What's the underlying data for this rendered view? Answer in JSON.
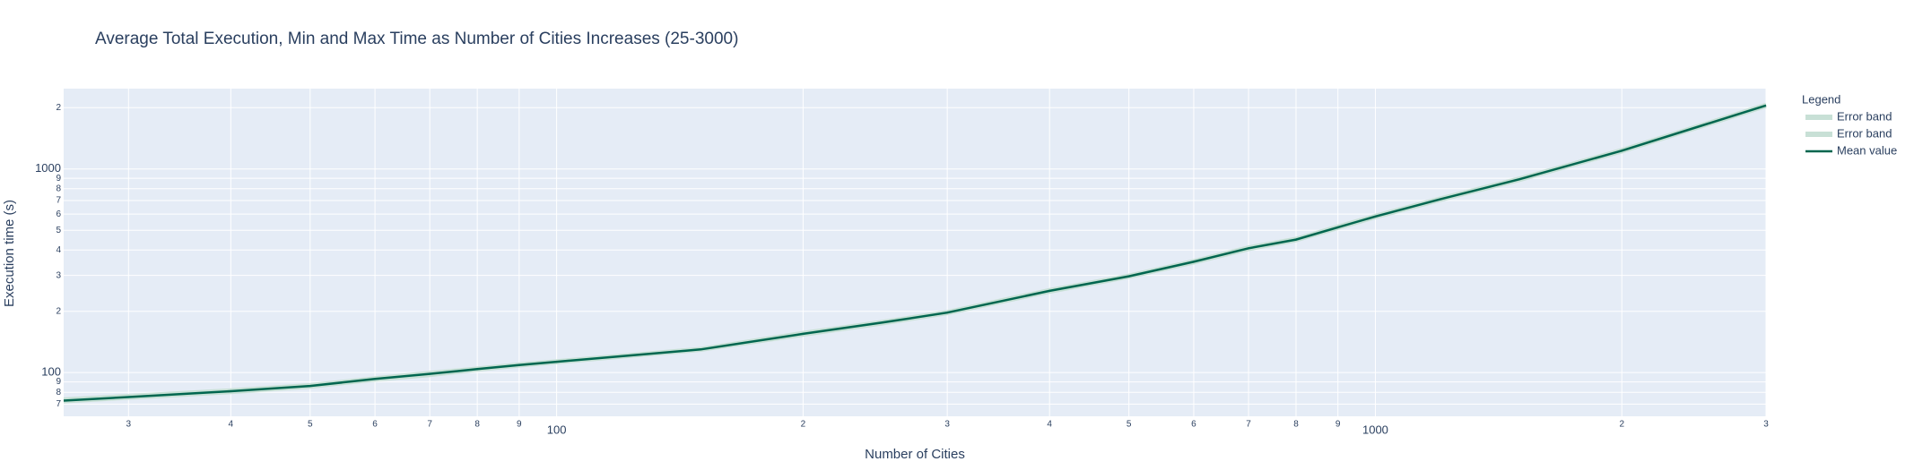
{
  "chart_data": {
    "type": "line",
    "title": "Average Total Execution, Min and Max Time as Number of Cities Increases (25-3000)",
    "x_label": "Number of Cities",
    "y_label": "Execution time (s)",
    "legend_title": "Legend",
    "x_log": true,
    "y_log": true,
    "grid": true,
    "legend_position": "right",
    "x": [
      25,
      30,
      40,
      50,
      60,
      70,
      80,
      90,
      100,
      150,
      200,
      250,
      300,
      400,
      500,
      600,
      700,
      800,
      900,
      1000,
      1200,
      1500,
      2000,
      2500,
      3000
    ],
    "series": [
      {
        "name": "Error band",
        "color": "#c8e0d6",
        "values": [
          72,
          75,
          80,
          85,
          92,
          97,
          103,
          108,
          112,
          129,
          153,
          174,
          195,
          249,
          294,
          346,
          403,
          445,
          511,
          577,
          702,
          880,
          1216,
          1612,
          2027
        ]
      },
      {
        "name": "Error band",
        "color": "#c8e0d6",
        "values": [
          74,
          77,
          82,
          87,
          94,
          100,
          105,
          110,
          114,
          131,
          157,
          178,
          199,
          255,
          300,
          354,
          413,
          455,
          523,
          591,
          718,
          900,
          1244,
          1648,
          2073
        ]
      },
      {
        "name": "Mean value",
        "color": "#00664f",
        "values": [
          72.8,
          75.8,
          81,
          86,
          93,
          98.6,
          104,
          109,
          113,
          130,
          155,
          176,
          197,
          252,
          297,
          350,
          408,
          450,
          517,
          584,
          710,
          890,
          1230,
          1630,
          2050
        ]
      }
    ],
    "xlim": [
      25,
      3000
    ],
    "ylim": [
      61,
      2480
    ],
    "xticks": [
      {
        "value": 30,
        "label": "3"
      },
      {
        "value": 40,
        "label": "4"
      },
      {
        "value": 50,
        "label": "5"
      },
      {
        "value": 60,
        "label": "6"
      },
      {
        "value": 70,
        "label": "7"
      },
      {
        "value": 80,
        "label": "8"
      },
      {
        "value": 90,
        "label": "9"
      },
      100,
      {
        "value": 200,
        "label": "2"
      },
      {
        "value": 300,
        "label": "3"
      },
      {
        "value": 400,
        "label": "4"
      },
      {
        "value": 500,
        "label": "5"
      },
      {
        "value": 600,
        "label": "6"
      },
      {
        "value": 700,
        "label": "7"
      },
      {
        "value": 800,
        "label": "8"
      },
      {
        "value": 900,
        "label": "9"
      },
      1000,
      {
        "value": 2000,
        "label": "2"
      },
      {
        "value": 3000,
        "label": "3"
      }
    ],
    "yticks": [
      {
        "value": 70,
        "label": "7"
      },
      {
        "value": 80,
        "label": "8"
      },
      {
        "value": 90,
        "label": "9"
      },
      100,
      {
        "value": 200,
        "label": "2"
      },
      {
        "value": 300,
        "label": "3"
      },
      {
        "value": 400,
        "label": "4"
      },
      {
        "value": 500,
        "label": "5"
      },
      {
        "value": 600,
        "label": "6"
      },
      {
        "value": 700,
        "label": "7"
      },
      {
        "value": 800,
        "label": "8"
      },
      {
        "value": 900,
        "label": "9"
      },
      1000,
      {
        "value": 2000,
        "label": "2"
      }
    ]
  }
}
